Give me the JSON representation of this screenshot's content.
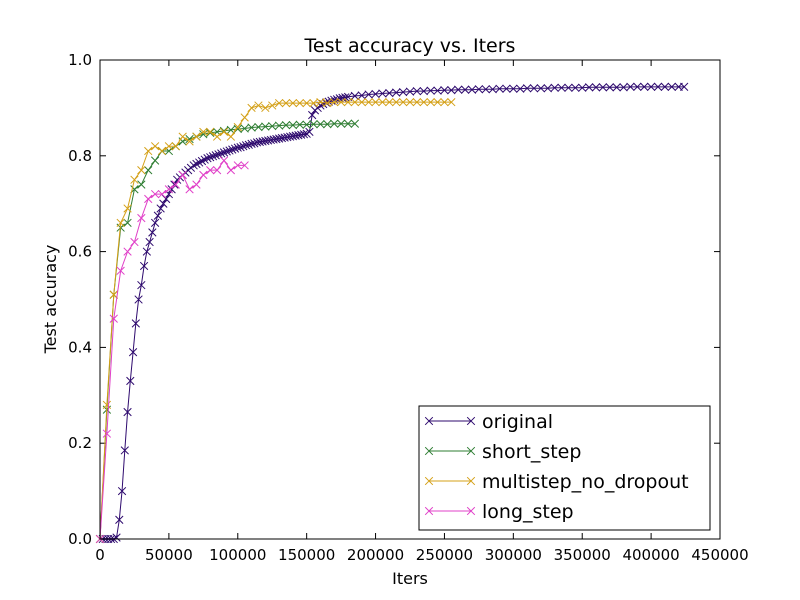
{
  "chart_data": {
    "type": "line",
    "title": "Test accuracy  vs. Iters",
    "xlabel": "Iters",
    "ylabel": "Test accuracy",
    "xlim": [
      0,
      450000
    ],
    "ylim": [
      0,
      1.0
    ],
    "xticks": [
      0,
      50000,
      100000,
      150000,
      200000,
      250000,
      300000,
      350000,
      400000,
      450000
    ],
    "xtick_labels": [
      "0",
      "50000",
      "100000",
      "150000",
      "200000",
      "250000",
      "300000",
      "350000",
      "400000",
      "450000"
    ],
    "yticks": [
      0,
      0.2,
      0.4,
      0.6,
      0.8,
      1.0
    ],
    "ytick_labels": [
      "0.0",
      "0.2",
      "0.4",
      "0.6",
      "0.8",
      "1.0"
    ],
    "grid": false,
    "legend_position": "lower-right",
    "marker": "x",
    "series": [
      {
        "name": "original",
        "color": "#2e0a6e",
        "x": [
          0,
          2000,
          4000,
          6000,
          8000,
          10000,
          12000,
          14000,
          16000,
          18000,
          20000,
          22000,
          24000,
          26000,
          28000,
          30000,
          32000,
          34000,
          36000,
          38000,
          40000,
          42000,
          44000,
          46000,
          48000,
          50000,
          52000,
          54000,
          56000,
          58000,
          60000,
          62000,
          64000,
          66000,
          68000,
          70000,
          72000,
          74000,
          76000,
          78000,
          80000,
          82000,
          84000,
          86000,
          88000,
          90000,
          92000,
          94000,
          96000,
          98000,
          100000,
          102000,
          104000,
          106000,
          108000,
          110000,
          112000,
          114000,
          116000,
          118000,
          120000,
          122000,
          124000,
          126000,
          128000,
          130000,
          132000,
          134000,
          136000,
          138000,
          140000,
          142000,
          144000,
          146000,
          148000,
          150000,
          152000,
          154000,
          156000,
          158000,
          160000,
          162000,
          164000,
          166000,
          168000,
          170000,
          172000,
          174000,
          176000,
          178000,
          180000,
          185000,
          190000,
          195000,
          200000,
          205000,
          210000,
          215000,
          220000,
          225000,
          230000,
          235000,
          240000,
          245000,
          250000,
          255000,
          260000,
          265000,
          270000,
          275000,
          280000,
          285000,
          290000,
          295000,
          300000,
          305000,
          310000,
          315000,
          320000,
          325000,
          330000,
          335000,
          340000,
          345000,
          350000,
          355000,
          360000,
          365000,
          370000,
          375000,
          380000,
          385000,
          390000,
          395000,
          400000,
          405000,
          410000,
          415000,
          420000,
          424000
        ],
        "y": [
          0.0,
          0.0,
          0.0,
          0.0,
          0.0,
          0.0,
          0.003,
          0.04,
          0.1,
          0.185,
          0.265,
          0.33,
          0.39,
          0.45,
          0.5,
          0.53,
          0.57,
          0.6,
          0.62,
          0.64,
          0.66,
          0.675,
          0.69,
          0.7,
          0.71,
          0.72,
          0.73,
          0.74,
          0.75,
          0.755,
          0.76,
          0.765,
          0.77,
          0.775,
          0.78,
          0.783,
          0.786,
          0.789,
          0.792,
          0.795,
          0.797,
          0.799,
          0.801,
          0.803,
          0.805,
          0.807,
          0.809,
          0.811,
          0.813,
          0.815,
          0.817,
          0.818,
          0.82,
          0.822,
          0.823,
          0.825,
          0.826,
          0.828,
          0.829,
          0.83,
          0.831,
          0.832,
          0.833,
          0.834,
          0.835,
          0.836,
          0.837,
          0.838,
          0.839,
          0.84,
          0.841,
          0.842,
          0.843,
          0.844,
          0.845,
          0.846,
          0.85,
          0.885,
          0.895,
          0.9,
          0.905,
          0.908,
          0.911,
          0.913,
          0.915,
          0.917,
          0.918,
          0.92,
          0.921,
          0.922,
          0.923,
          0.925,
          0.926,
          0.928,
          0.929,
          0.93,
          0.931,
          0.932,
          0.933,
          0.934,
          0.935,
          0.935,
          0.936,
          0.936,
          0.937,
          0.937,
          0.938,
          0.938,
          0.938,
          0.939,
          0.939,
          0.939,
          0.94,
          0.94,
          0.94,
          0.94,
          0.941,
          0.941,
          0.941,
          0.941,
          0.942,
          0.942,
          0.942,
          0.942,
          0.942,
          0.943,
          0.943,
          0.943,
          0.943,
          0.943,
          0.943,
          0.944,
          0.944,
          0.944,
          0.944,
          0.944,
          0.944,
          0.944,
          0.944,
          0.944
        ]
      },
      {
        "name": "short_step",
        "color": "#2e7d32",
        "x": [
          0,
          5000,
          10000,
          15000,
          20000,
          25000,
          30000,
          35000,
          40000,
          45000,
          50000,
          55000,
          60000,
          65000,
          70000,
          75000,
          80000,
          85000,
          90000,
          95000,
          100000,
          105000,
          110000,
          115000,
          120000,
          125000,
          130000,
          135000,
          140000,
          145000,
          150000,
          155000,
          160000,
          165000,
          170000,
          175000,
          180000,
          185000
        ],
        "y": [
          0.0,
          0.27,
          0.51,
          0.65,
          0.66,
          0.73,
          0.74,
          0.77,
          0.79,
          0.81,
          0.81,
          0.82,
          0.83,
          0.835,
          0.84,
          0.845,
          0.848,
          0.85,
          0.852,
          0.854,
          0.856,
          0.857,
          0.859,
          0.86,
          0.861,
          0.862,
          0.863,
          0.864,
          0.864,
          0.865,
          0.865,
          0.866,
          0.866,
          0.866,
          0.867,
          0.867,
          0.867,
          0.867
        ]
      },
      {
        "name": "multistep_no_dropout",
        "color": "#d4a017",
        "x": [
          0,
          5000,
          10000,
          15000,
          20000,
          25000,
          30000,
          35000,
          40000,
          45000,
          50000,
          55000,
          60000,
          65000,
          70000,
          75000,
          80000,
          85000,
          90000,
          95000,
          100000,
          105000,
          110000,
          115000,
          120000,
          125000,
          130000,
          135000,
          140000,
          145000,
          150000,
          155000,
          160000,
          165000,
          170000,
          175000,
          180000,
          185000,
          190000,
          195000,
          200000,
          205000,
          210000,
          215000,
          220000,
          225000,
          230000,
          235000,
          240000,
          245000,
          250000,
          255000
        ],
        "y": [
          0.0,
          0.28,
          0.51,
          0.66,
          0.69,
          0.75,
          0.77,
          0.81,
          0.82,
          0.81,
          0.82,
          0.82,
          0.84,
          0.83,
          0.84,
          0.85,
          0.85,
          0.84,
          0.85,
          0.84,
          0.86,
          0.88,
          0.9,
          0.905,
          0.9,
          0.905,
          0.91,
          0.91,
          0.91,
          0.91,
          0.91,
          0.91,
          0.912,
          0.91,
          0.912,
          0.912,
          0.912,
          0.912,
          0.912,
          0.912,
          0.912,
          0.912,
          0.912,
          0.912,
          0.912,
          0.912,
          0.912,
          0.912,
          0.912,
          0.912,
          0.912,
          0.912
        ]
      },
      {
        "name": "long_step",
        "color": "#e040c8",
        "x": [
          0,
          5000,
          10000,
          15000,
          20000,
          25000,
          30000,
          35000,
          40000,
          45000,
          50000,
          55000,
          60000,
          65000,
          70000,
          75000,
          80000,
          85000,
          90000,
          95000,
          100000,
          105000
        ],
        "y": [
          0.0,
          0.22,
          0.46,
          0.56,
          0.6,
          0.62,
          0.67,
          0.71,
          0.72,
          0.72,
          0.73,
          0.74,
          0.76,
          0.73,
          0.74,
          0.76,
          0.77,
          0.77,
          0.79,
          0.77,
          0.78,
          0.78
        ]
      }
    ]
  }
}
